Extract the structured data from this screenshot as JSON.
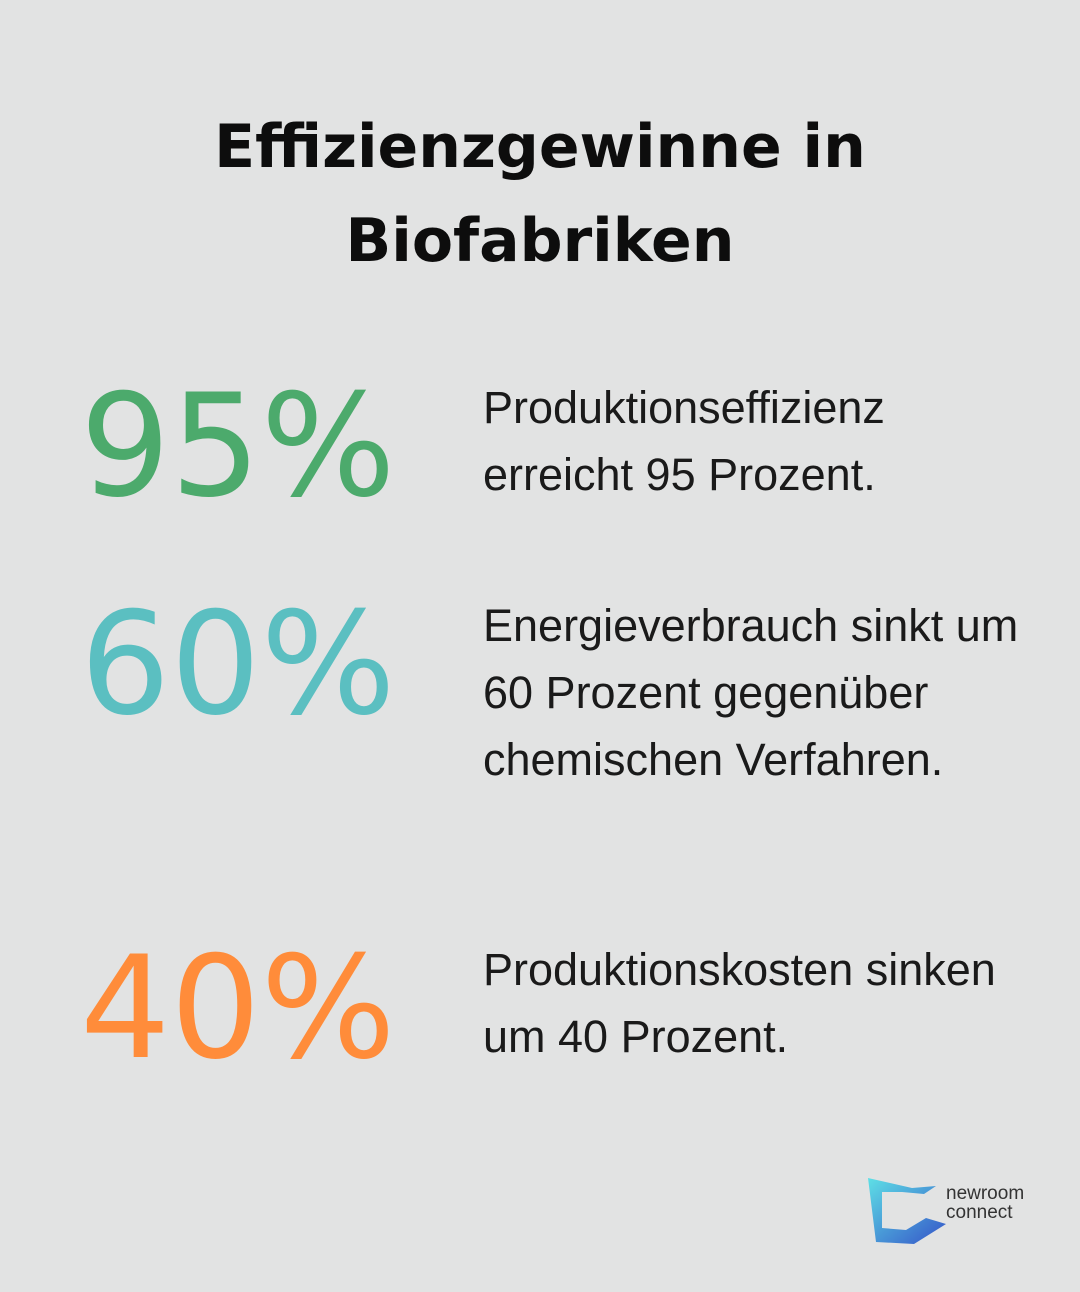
{
  "title": "Effizienzgewinne in Biofabriken",
  "stats": [
    {
      "value": "95%",
      "description": "Produktionseffizienz erreicht 95 Prozent."
    },
    {
      "value": "60%",
      "description": "Energieverbrauch sinkt um 60 Prozent gegenüber chemischen Verfahren."
    },
    {
      "value": "40%",
      "description": "Produktionskosten sinken um 40 Prozent."
    }
  ],
  "logo": {
    "line1": "newroom",
    "line2": "connect"
  }
}
